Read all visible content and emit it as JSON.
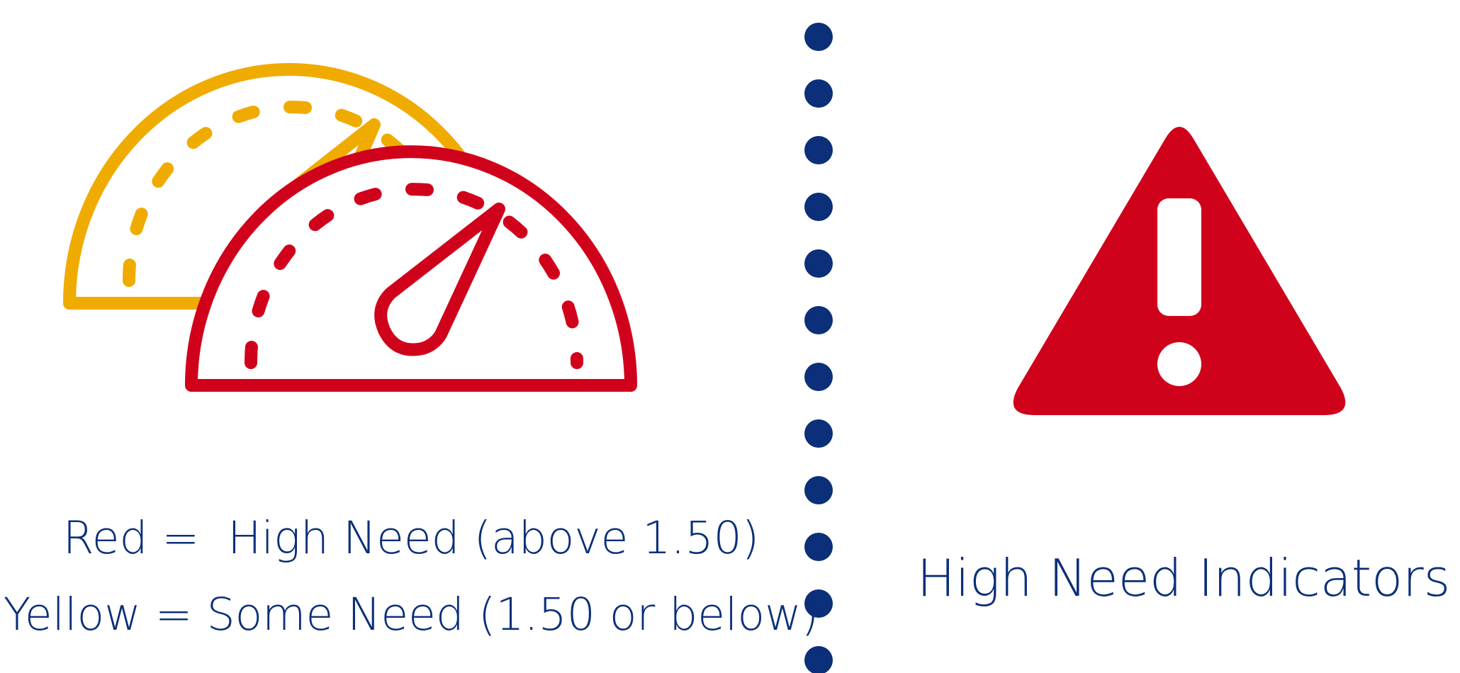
{
  "colors": {
    "navy": "#0b2f78",
    "red": "#d0021b",
    "yellow": "#f0ab00",
    "background": "#ffffff"
  },
  "legend": {
    "red_line": "Red =  High Need (above 1.50)",
    "yellow_line": "Yellow = Some Need (1.50 or below)"
  },
  "indicators": {
    "title": "High Need Indicators"
  },
  "icons": {
    "gauges": "speedometer-gauge-icon",
    "warning": "warning-triangle-icon",
    "separator": "dotted-divider"
  }
}
